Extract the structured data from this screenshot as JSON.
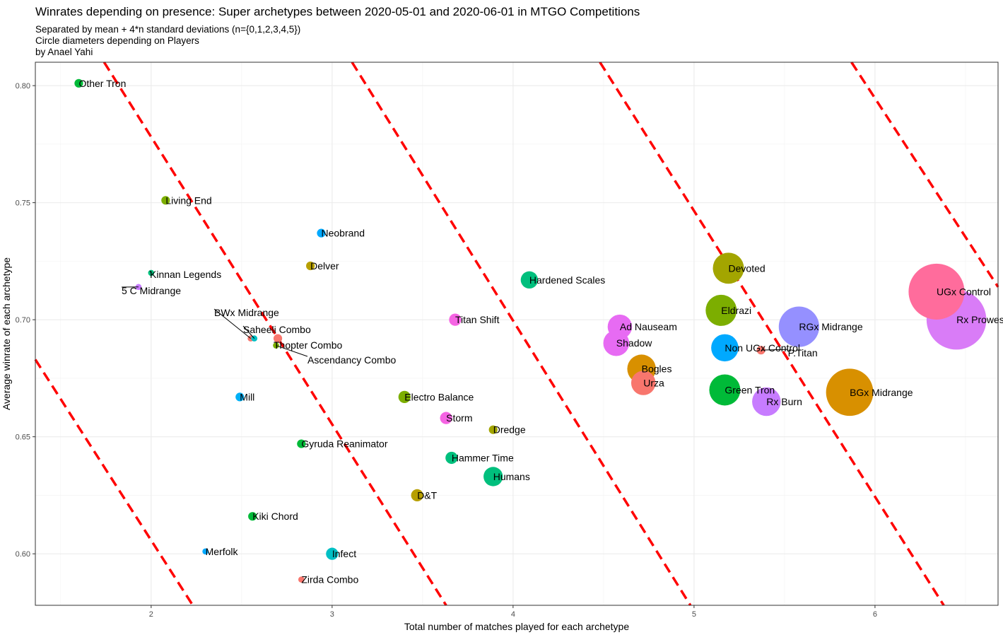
{
  "chart_data": {
    "type": "scatter",
    "title": "Winrates depending on presence: Super archetypes  between 2020-05-01 and 2020-06-01 in MTGO Competitions",
    "subtitle": [
      "Separated by mean + 4*n standard deviations (n={0,1,2,3,4,5})",
      "Circle diameters depending on Players",
      "by Anael Yahi"
    ],
    "xlabel": "Total number of matches played for each archetype",
    "ylabel": "Average winrate of each archetype",
    "xlim": [
      1.36,
      6.68
    ],
    "ylim": [
      0.578,
      0.81
    ],
    "x_ticks": [
      2,
      3,
      4,
      5,
      6
    ],
    "y_ticks": [
      0.6,
      0.65,
      0.7,
      0.75,
      0.8
    ],
    "x_tick_labels": [
      "2",
      "3",
      "4",
      "5",
      "6"
    ],
    "y_tick_labels": [
      "0.60",
      "0.65",
      "0.70",
      "0.75",
      "0.80"
    ],
    "grid": true,
    "legend": "none",
    "separator_lines": {
      "color": "#ff0000",
      "style": "dashed",
      "segments": [
        [
          [
            1.36,
            0.683
          ],
          [
            2.23,
            0.578
          ]
        ],
        [
          [
            1.74,
            0.81
          ],
          [
            3.63,
            0.578
          ]
        ],
        [
          [
            3.11,
            0.81
          ],
          [
            4.98,
            0.578
          ]
        ],
        [
          [
            4.48,
            0.81
          ],
          [
            6.38,
            0.578
          ]
        ],
        [
          [
            5.87,
            0.81
          ],
          [
            6.68,
            0.714
          ]
        ]
      ]
    },
    "points": [
      {
        "name": "Other Tron",
        "x": 1.6,
        "y": 0.801,
        "size": 1,
        "color": "#00BA38"
      },
      {
        "name": "Living End",
        "x": 2.08,
        "y": 0.751,
        "size": 1,
        "color": "#7CAE00"
      },
      {
        "name": "Neobrand",
        "x": 2.94,
        "y": 0.737,
        "size": 1,
        "color": "#00A9FF"
      },
      {
        "name": "Delver",
        "x": 2.88,
        "y": 0.723,
        "size": 1,
        "color": "#B79F00"
      },
      {
        "name": "Kinnan Legends",
        "x": 2.0,
        "y": 0.72,
        "size": 0.5,
        "color": "#00BF7D"
      },
      {
        "name": "5 C Midrange",
        "x": 1.93,
        "y": 0.714,
        "size": 0.5,
        "color": "#C77CFF"
      },
      {
        "name": "Hardened Scales",
        "x": 4.09,
        "y": 0.717,
        "size": 4,
        "color": "#00BF7D"
      },
      {
        "name": "BWx Midrange",
        "x": 2.55,
        "y": 0.692,
        "size": 0.5,
        "color": "#F8766D"
      },
      {
        "name": "Saheeli Combo",
        "x": 2.57,
        "y": 0.692,
        "size": 0.5,
        "color": "#00BFC4"
      },
      {
        "name": "Thopter Combo",
        "x": 2.7,
        "y": 0.692,
        "size": 1,
        "color": "#F8766D"
      },
      {
        "name": "Ascendancy Combo",
        "x": 2.69,
        "y": 0.689,
        "size": 0.5,
        "color": "#7CAE00"
      },
      {
        "name": "Titan Shift",
        "x": 3.68,
        "y": 0.7,
        "size": 2,
        "color": "#F564E3"
      },
      {
        "name": "Ad Nauseam",
        "x": 4.59,
        "y": 0.697,
        "size": 8,
        "color": "#E76BF3"
      },
      {
        "name": "Shadow",
        "x": 4.57,
        "y": 0.69,
        "size": 9,
        "color": "#E76BF3"
      },
      {
        "name": "Mill",
        "x": 2.49,
        "y": 0.667,
        "size": 1,
        "color": "#00B0F6"
      },
      {
        "name": "Electro Balance",
        "x": 3.4,
        "y": 0.667,
        "size": 2,
        "color": "#7CAE00"
      },
      {
        "name": "Storm",
        "x": 3.63,
        "y": 0.658,
        "size": 2,
        "color": "#F564E3"
      },
      {
        "name": "Dredge",
        "x": 3.89,
        "y": 0.653,
        "size": 1,
        "color": "#A3A500"
      },
      {
        "name": "Gyruda Reanimator",
        "x": 2.83,
        "y": 0.647,
        "size": 1,
        "color": "#00BA38"
      },
      {
        "name": "Hammer Time",
        "x": 3.66,
        "y": 0.641,
        "size": 2,
        "color": "#00BF7D"
      },
      {
        "name": "Humans",
        "x": 3.89,
        "y": 0.633,
        "size": 5,
        "color": "#00BF7D"
      },
      {
        "name": "D&T",
        "x": 3.47,
        "y": 0.625,
        "size": 2,
        "color": "#B79F00"
      },
      {
        "name": "Kiki Chord",
        "x": 2.56,
        "y": 0.616,
        "size": 1,
        "color": "#00BA38"
      },
      {
        "name": "Merfolk",
        "x": 2.3,
        "y": 0.601,
        "size": 0.5,
        "color": "#00A9FF"
      },
      {
        "name": "Infect",
        "x": 3.0,
        "y": 0.6,
        "size": 2,
        "color": "#00BFC4"
      },
      {
        "name": "Zirda Combo",
        "x": 2.83,
        "y": 0.589,
        "size": 0.5,
        "color": "#F8766D"
      },
      {
        "name": "Bogles",
        "x": 4.71,
        "y": 0.679,
        "size": 11,
        "color": "#D89000"
      },
      {
        "name": "Urza",
        "x": 4.72,
        "y": 0.673,
        "size": 8,
        "color": "#F8766D"
      },
      {
        "name": "Devoted",
        "x": 5.19,
        "y": 0.722,
        "size": 13,
        "color": "#A3A500"
      },
      {
        "name": "Eldrazi",
        "x": 5.15,
        "y": 0.704,
        "size": 13,
        "color": "#7CAE00"
      },
      {
        "name": "Non UGx Control",
        "x": 5.17,
        "y": 0.688,
        "size": 10,
        "color": "#00A9FF"
      },
      {
        "name": "P.Titan",
        "x": 5.37,
        "y": 0.687,
        "size": 1,
        "color": "#F8766D"
      },
      {
        "name": "Green Tron",
        "x": 5.17,
        "y": 0.67,
        "size": 13,
        "color": "#00BA38"
      },
      {
        "name": "RGx Midrange",
        "x": 5.58,
        "y": 0.697,
        "size": 22,
        "color": "#9590FF"
      },
      {
        "name": "Rx Burn",
        "x": 5.4,
        "y": 0.665,
        "size": 11,
        "color": "#C77CFF"
      },
      {
        "name": "BGx Midrange",
        "x": 5.86,
        "y": 0.669,
        "size": 30,
        "color": "#D89000"
      },
      {
        "name": "UGx Control",
        "x": 6.34,
        "y": 0.712,
        "size": 42,
        "color": "#FF6C9C"
      },
      {
        "name": "Rx Prowess",
        "x": 6.45,
        "y": 0.7,
        "size": 48,
        "color": "#D97CF7"
      }
    ]
  }
}
